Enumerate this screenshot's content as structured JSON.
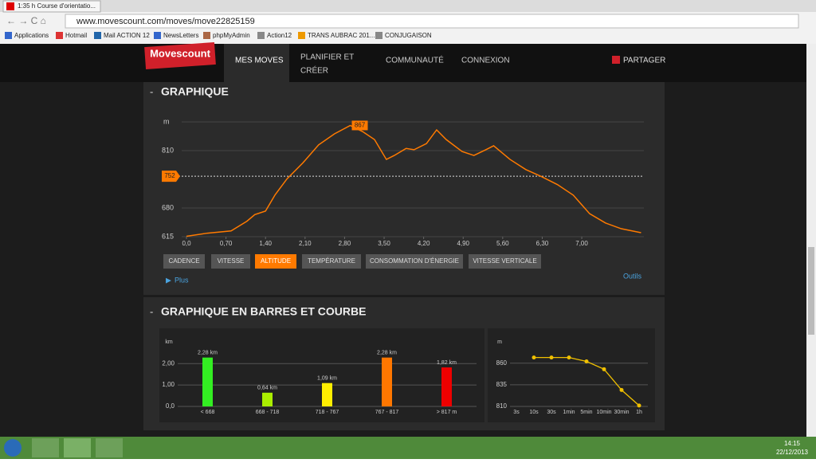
{
  "browser": {
    "tab_title": "1:35 h Course d'orientatio...",
    "url": "www.movescount.com/moves/move22825159",
    "bookmarks": [
      "Applications",
      "Hotmail",
      "Mail ACTION 12",
      "NewsLetters",
      "phpMyAdmin",
      "Action12",
      "TRANS AUBRAC 201...",
      "CONJUGAISON"
    ]
  },
  "nav": {
    "logo": "Movescount",
    "items": [
      "MES MOVES",
      "PLANIFIER ET",
      "CRÉER",
      "COMMUNAUTÉ",
      "CONNEXION"
    ],
    "share": "PARTAGER"
  },
  "graph": {
    "title": "GRAPHIQUE",
    "y_unit": "m",
    "color": "#ff7a00",
    "xlim": [
      0,
      8.1
    ],
    "ylim": [
      615,
      875
    ],
    "yticks": [
      615,
      680,
      810
    ],
    "xticks": [
      {
        "value": 0,
        "label": "0,0"
      },
      {
        "value": 0.7,
        "label": "0,70"
      },
      {
        "value": 1.4,
        "label": "1,40"
      },
      {
        "value": 2.1,
        "label": "2,10"
      },
      {
        "value": 2.8,
        "label": "2,80"
      },
      {
        "value": 3.5,
        "label": "3,50"
      },
      {
        "value": 4.2,
        "label": "4,20"
      },
      {
        "value": 4.9,
        "label": "4,90"
      },
      {
        "value": 5.6,
        "label": "5,60"
      },
      {
        "value": 6.3,
        "label": "6,30"
      },
      {
        "value": 7.0,
        "label": "7,00"
      }
    ],
    "x": [
      0,
      0.37,
      0.79,
      1.07,
      1.21,
      1.4,
      1.57,
      1.78,
      2.06,
      2.34,
      2.62,
      2.9,
      3.12,
      3.33,
      3.54,
      3.68,
      3.89,
      4.03,
      4.25,
      4.43,
      4.6,
      4.88,
      5.09,
      5.3,
      5.44,
      5.73,
      6.01,
      6.29,
      6.57,
      6.85,
      7.14,
      7.42,
      7.7,
      8.05
    ],
    "values": [
      616,
      623,
      628,
      650,
      665,
      673,
      710,
      746,
      782,
      823,
      848,
      867,
      853,
      835,
      790,
      799,
      815,
      812,
      826,
      857,
      835,
      808,
      799,
      812,
      821,
      790,
      767,
      751,
      733,
      709,
      667,
      646,
      633,
      624
    ],
    "max": 867,
    "current": 752,
    "buttons": [
      "CADENCE",
      "VITESSE",
      "ALTITUDE",
      "TEMPÉRATURE",
      "CONSOMMATION D'ÉNERGIE",
      "VITESSE VERTICALE"
    ],
    "active_button": "ALTITUDE",
    "more": "Plus",
    "tools": "Outils"
  },
  "bars": {
    "title": "GRAPHIQUE EN BARRES ET COURBE",
    "y_unit": "km",
    "ylim": [
      0,
      2.9
    ],
    "yticks": [
      {
        "value": 0,
        "label": "0,0"
      },
      {
        "value": 1,
        "label": "1,00"
      },
      {
        "value": 2,
        "label": "2,00"
      }
    ],
    "categories": [
      "< 668",
      "668 - 718",
      "718 - 767",
      "767 - 817",
      "> 817 m"
    ],
    "values": [
      2.28,
      0.64,
      1.09,
      2.28,
      1.82
    ],
    "value_labels": [
      "2,28 km",
      "0,64 km",
      "1,09 km",
      "2,28 km",
      "1,82 km"
    ],
    "colors": [
      "#33ee22",
      "#aaee00",
      "#ffee00",
      "#ff7700",
      "#ee0000"
    ]
  },
  "curve": {
    "y_unit": "m",
    "ylim": [
      810,
      880
    ],
    "yticks": [
      810,
      835,
      860
    ],
    "color": "#f0c000",
    "categories": [
      "3s",
      "10s",
      "30s",
      "1min",
      "5min",
      "10min",
      "30min",
      "1h"
    ],
    "values": [
      null,
      866.5,
      866.5,
      866.5,
      862,
      853,
      829,
      811
    ]
  },
  "taskbar": {
    "time": "14:15",
    "date": "22/12/2013"
  }
}
